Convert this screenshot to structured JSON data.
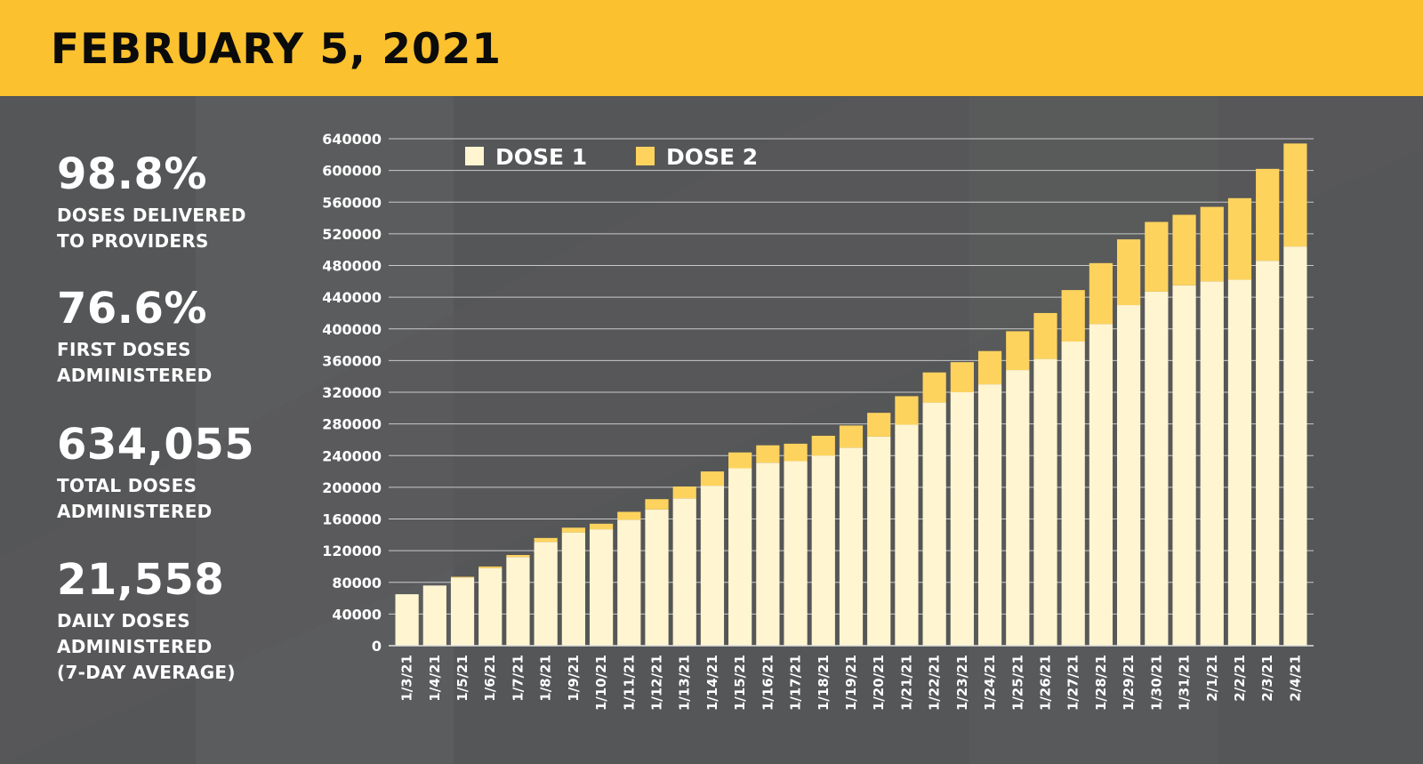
{
  "header": {
    "title": "FEBRUARY 5, 2021"
  },
  "colors": {
    "header_bg": "#fcc12e",
    "panel_bg": "#555657",
    "dose1": "#fff5d1",
    "dose2": "#fdd35e",
    "text": "#ffffff"
  },
  "stats": [
    {
      "value": "98.8%",
      "label": "DOSES DELIVERED\nTO PROVIDERS"
    },
    {
      "value": "76.6%",
      "label": "FIRST DOSES\nADMINISTERED"
    },
    {
      "value": "634,055",
      "label": "TOTAL DOSES\nADMINISTERED"
    },
    {
      "value": "21,558",
      "label": "DAILY DOSES\nADMINISTERED\n(7-DAY AVERAGE)"
    }
  ],
  "chart_data": {
    "type": "bar",
    "stacked": true,
    "title": "",
    "xlabel": "",
    "ylabel": "",
    "ylim": [
      0,
      640000
    ],
    "yticks": [
      0,
      40000,
      80000,
      120000,
      160000,
      200000,
      240000,
      280000,
      320000,
      360000,
      400000,
      440000,
      480000,
      520000,
      560000,
      600000,
      640000
    ],
    "grid": true,
    "legend_position": "top-left",
    "categories": [
      "1/3/21",
      "1/4/21",
      "1/5/21",
      "1/6/21",
      "1/7/21",
      "1/8/21",
      "1/9/21",
      "1/10/21",
      "1/11/21",
      "1/12/21",
      "1/13/21",
      "1/14/21",
      "1/15/21",
      "1/16/21",
      "1/17/21",
      "1/18/21",
      "1/19/21",
      "1/20/21",
      "1/21/21",
      "1/22/21",
      "1/23/21",
      "1/24/21",
      "1/25/21",
      "1/26/21",
      "1/27/21",
      "1/28/21",
      "1/29/21",
      "1/30/21",
      "1/31/21",
      "2/1/21",
      "2/2/21",
      "2/3/21",
      "2/4/21"
    ],
    "series": [
      {
        "name": "DOSE 1",
        "color": "#fff5d1",
        "values": [
          65000,
          76000,
          86000,
          98000,
          112000,
          131000,
          143000,
          147000,
          159000,
          172000,
          186000,
          202000,
          224000,
          231000,
          233000,
          240000,
          250000,
          264000,
          279000,
          307000,
          320000,
          330000,
          348000,
          362000,
          384000,
          406000,
          430000,
          447000,
          455000,
          460000,
          462000,
          486000,
          504000
        ]
      },
      {
        "name": "DOSE 2",
        "color": "#fdd35e",
        "values": [
          0,
          0,
          1000,
          2000,
          2500,
          5000,
          6000,
          7000,
          10000,
          13000,
          15000,
          18000,
          20000,
          22000,
          22000,
          25000,
          28000,
          30000,
          36000,
          38000,
          38000,
          42000,
          49000,
          58000,
          65000,
          77000,
          83000,
          88000,
          89000,
          94000,
          103000,
          116000,
          130000
        ]
      }
    ]
  }
}
